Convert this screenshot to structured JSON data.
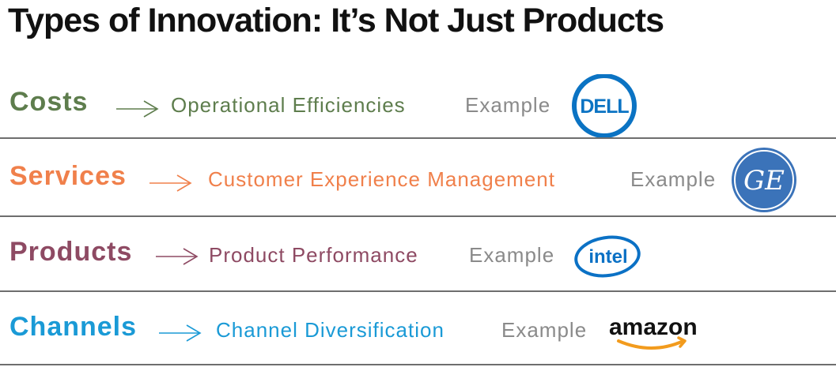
{
  "title": "Types of Innovation: It’s Not Just Products",
  "colors": {
    "costs": "#5e7d4d",
    "services": "#f0804b",
    "products": "#8e4a63",
    "channels": "#1a9ad6",
    "example_text": "#8a8a8a",
    "rule": "#6e6e6e"
  },
  "rows": [
    {
      "category": "Costs",
      "icon": "arrow-right-icon",
      "description": "Operational Efficiencies",
      "example_label": "Example",
      "logo": {
        "name": "dell-logo",
        "text": "DELL"
      }
    },
    {
      "category": "Services",
      "icon": "arrow-right-icon",
      "description": "Customer Experience Management",
      "example_label": "Example",
      "logo": {
        "name": "ge-logo",
        "text": "GE"
      }
    },
    {
      "category": "Products",
      "icon": "arrow-right-icon",
      "description": "Product Performance",
      "example_label": "Example",
      "logo": {
        "name": "intel-logo",
        "text": "intel"
      }
    },
    {
      "category": "Channels",
      "icon": "arrow-right-icon",
      "description": "Channel Diversification",
      "example_label": "Example",
      "logo": {
        "name": "amazon-logo",
        "text": "amazon"
      }
    }
  ]
}
